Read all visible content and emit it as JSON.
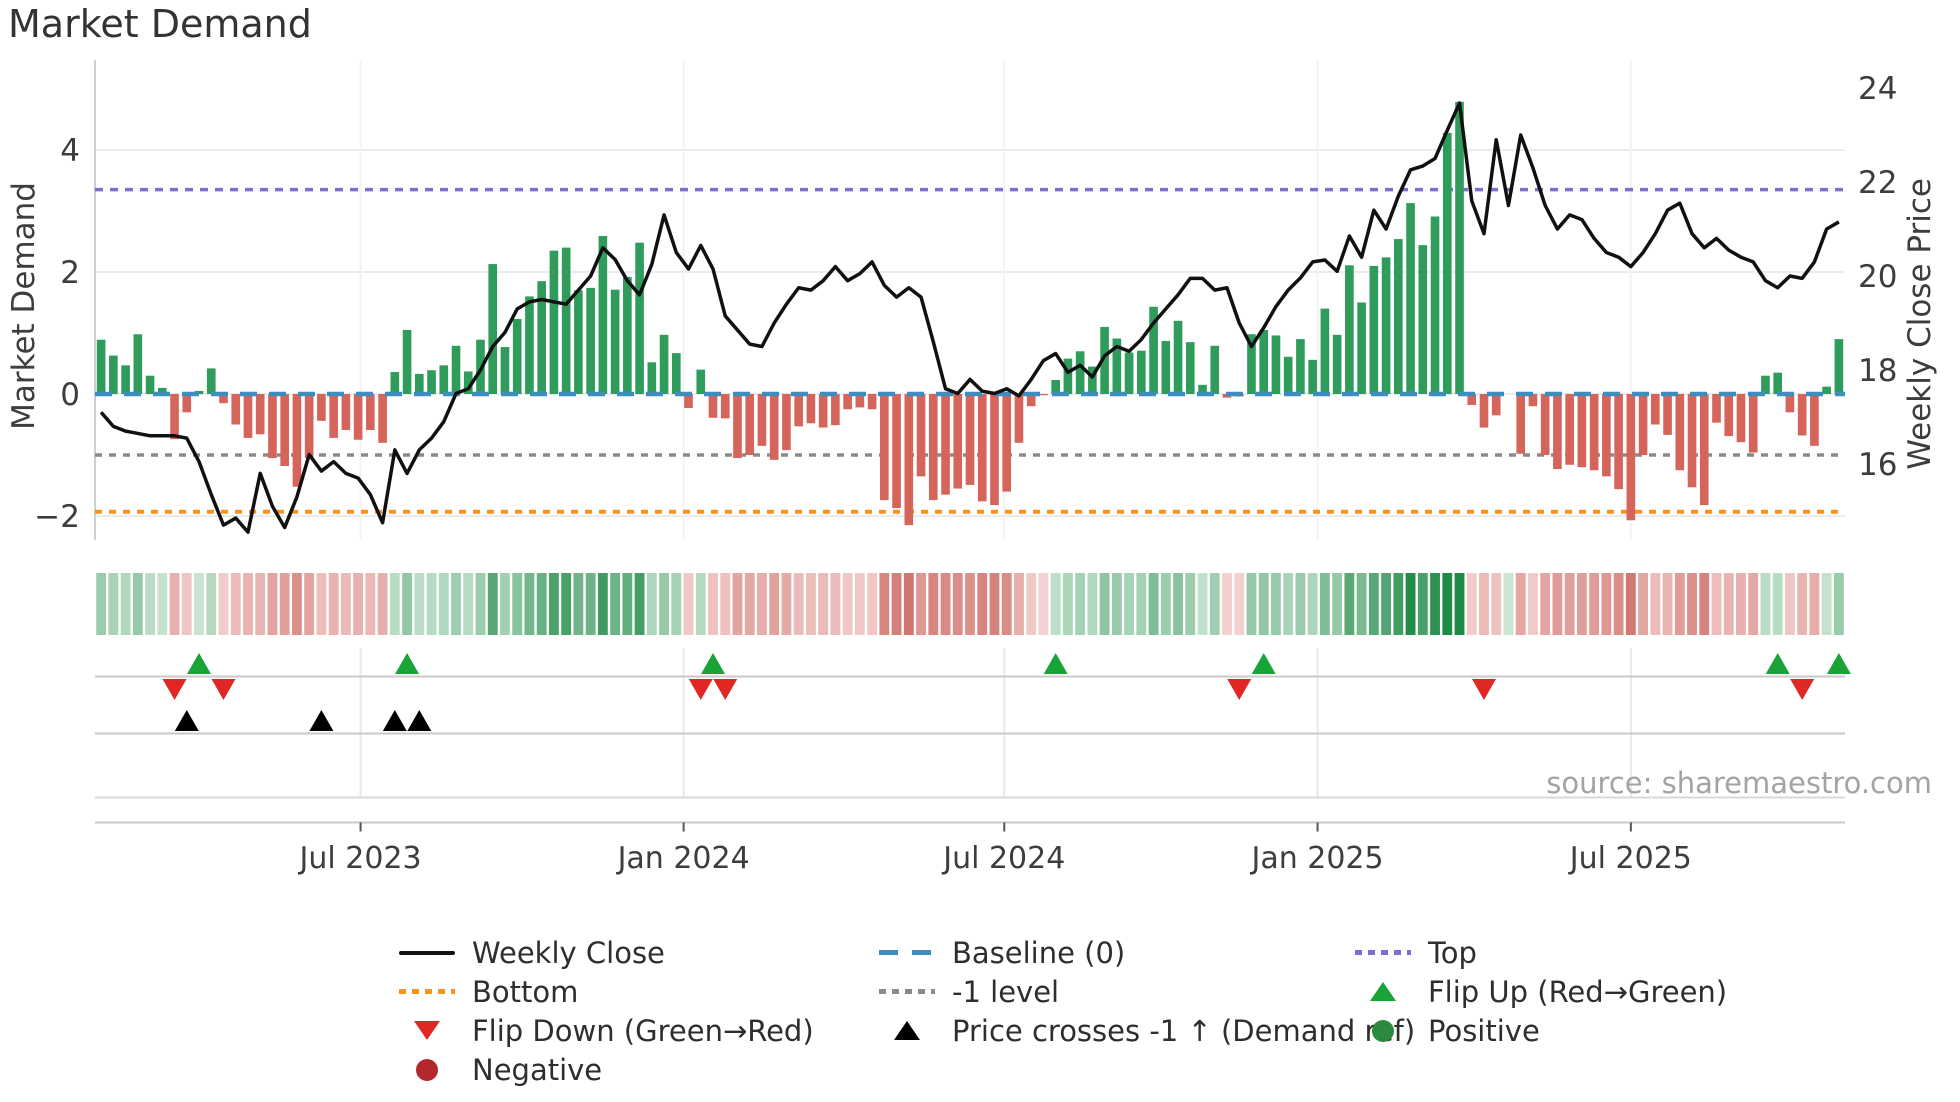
{
  "title": "Market Demand",
  "source": "source: sharemaestro.com",
  "axes": {
    "y_left_title": "Market Demand",
    "y_right_title": "Weekly Close Price",
    "y_left_ticks": [
      "4",
      "2",
      "0",
      "−2"
    ],
    "y_left_tick_values": [
      4,
      2,
      0,
      -2
    ],
    "y_right_ticks": [
      "24",
      "22",
      "20",
      "18",
      "16"
    ],
    "y_right_tick_values": [
      24,
      22,
      20,
      18,
      16
    ],
    "x_tick_labels": [
      "Jul 2023",
      "Jan 2024",
      "Jul 2024",
      "Jan 2025",
      "Jul 2025"
    ]
  },
  "colors": {
    "bar_positive": "#2f9c5c",
    "bar_negative": "#d5655b",
    "price_line": "#111111",
    "baseline": "#3c8ebf",
    "top_line": "#7b6fd0",
    "minus_one_line": "#8a8a8a",
    "bottom_line": "#f5941f",
    "flip_up": "#1aa337",
    "flip_down": "#e02723",
    "price_cross": "#000000",
    "heat_green_dark": "#1e8a45",
    "heat_green_light": "#e9f5ec",
    "heat_red_dark": "#c2453c",
    "heat_red_light": "#fbeceb",
    "grid": "#ebebf1",
    "panel_line": "#c9c9c9",
    "tick_text": "#3d3d3d"
  },
  "legend": {
    "columns": [
      [
        {
          "marker": "solid-black",
          "label": "Weekly Close"
        },
        {
          "marker": "dotted-orange",
          "label": "Bottom"
        },
        {
          "marker": "tri-down-red",
          "label": "Flip Down (Green→Red)"
        },
        {
          "marker": "circle-darkred",
          "label": "Negative"
        }
      ],
      [
        {
          "marker": "dash-blue",
          "label": "Baseline (0)"
        },
        {
          "marker": "dotted-gray",
          "label": "-1 level"
        },
        {
          "marker": "tri-up-black",
          "label": "Price crosses -1 ↑ (Demand ref)"
        }
      ],
      [
        {
          "marker": "dotted-purple",
          "label": "Top"
        },
        {
          "marker": "tri-up-green",
          "label": "Flip Up (Red→Green)"
        },
        {
          "marker": "circle-green",
          "label": "Positive"
        }
      ]
    ]
  },
  "chart_data": {
    "type": "bar+line+heatmap+markers",
    "frequency": "weekly",
    "x_range_note": "weekly data, Feb 2023 to Oct 2025",
    "x_tick_weeks": [
      21.2,
      47.6,
      73.8,
      99.4,
      125.0
    ],
    "demand_axis_range": [
      -2.4,
      5.5
    ],
    "price_axis_range": [
      14.4,
      24.6
    ],
    "levels": {
      "baseline": 0,
      "top": 3.35,
      "minus_one": -1,
      "bottom": -1.93
    },
    "demand": [
      0.89,
      0.63,
      0.47,
      0.98,
      0.3,
      0.1,
      -0.74,
      -0.3,
      0.05,
      0.42,
      -0.15,
      -0.5,
      -0.72,
      -0.66,
      -1.05,
      -1.18,
      -1.52,
      -1.05,
      -0.44,
      -0.72,
      -0.59,
      -0.75,
      -0.59,
      -0.8,
      0.36,
      1.05,
      0.33,
      0.39,
      0.47,
      0.79,
      0.37,
      0.89,
      2.13,
      0.77,
      1.23,
      1.6,
      1.85,
      2.35,
      2.4,
      1.7,
      1.74,
      2.59,
      1.71,
      1.92,
      2.48,
      0.52,
      0.97,
      0.67,
      -0.23,
      0.4,
      -0.39,
      -0.4,
      -1.05,
      -1.0,
      -0.85,
      -1.08,
      -0.92,
      -0.53,
      -0.48,
      -0.55,
      -0.51,
      -0.25,
      -0.22,
      -0.25,
      -1.74,
      -1.87,
      -2.15,
      -1.35,
      -1.74,
      -1.65,
      -1.55,
      -1.49,
      -1.76,
      -1.82,
      -1.6,
      -0.8,
      -0.2,
      -0.02,
      0.23,
      0.58,
      0.7,
      0.45,
      1.1,
      0.91,
      0.68,
      0.71,
      1.43,
      0.87,
      1.2,
      0.85,
      0.15,
      0.79,
      -0.06,
      -0.04,
      0.98,
      1.05,
      0.96,
      0.61,
      0.9,
      0.56,
      1.4,
      0.97,
      2.11,
      1.5,
      2.1,
      2.24,
      2.54,
      3.13,
      2.44,
      2.91,
      4.28,
      4.79,
      -0.18,
      -0.55,
      -0.35,
      0.0,
      -0.98,
      -0.2,
      -1.0,
      -1.23,
      -1.16,
      -1.2,
      -1.25,
      -1.35,
      -1.56,
      -2.07,
      -1.0,
      -0.5,
      -0.67,
      -1.25,
      -1.53,
      -1.82,
      -0.47,
      -0.69,
      -0.79,
      -0.96,
      0.3,
      0.35,
      -0.3,
      -0.68,
      -0.85,
      0.12,
      0.9
    ],
    "price": [
      17.1,
      16.8,
      16.7,
      16.65,
      16.6,
      16.6,
      16.6,
      16.55,
      16.05,
      15.35,
      14.7,
      14.85,
      14.55,
      15.8,
      15.1,
      14.65,
      15.3,
      16.2,
      15.85,
      16.05,
      15.8,
      15.7,
      15.35,
      14.75,
      16.3,
      15.8,
      16.3,
      16.55,
      16.9,
      17.5,
      17.6,
      18.0,
      18.5,
      18.8,
      19.3,
      19.45,
      19.5,
      19.45,
      19.4,
      19.7,
      20.0,
      20.6,
      20.35,
      19.9,
      19.6,
      20.25,
      21.3,
      20.5,
      20.15,
      20.65,
      20.15,
      19.15,
      18.85,
      18.55,
      18.5,
      19.0,
      19.4,
      19.75,
      19.7,
      19.9,
      20.2,
      19.9,
      20.05,
      20.3,
      19.8,
      19.55,
      19.75,
      19.55,
      18.6,
      17.6,
      17.5,
      17.8,
      17.55,
      17.5,
      17.6,
      17.45,
      17.8,
      18.2,
      18.35,
      17.95,
      18.1,
      17.85,
      18.3,
      18.5,
      18.4,
      18.65,
      19.0,
      19.3,
      19.6,
      19.95,
      19.95,
      19.7,
      19.75,
      19.0,
      18.5,
      18.9,
      19.35,
      19.7,
      19.96,
      20.3,
      20.34,
      20.1,
      20.85,
      20.4,
      21.4,
      21.0,
      21.7,
      22.26,
      22.34,
      22.5,
      23.1,
      23.68,
      21.6,
      20.9,
      22.9,
      21.5,
      23.0,
      22.3,
      21.5,
      21.0,
      21.3,
      21.2,
      20.8,
      20.5,
      20.4,
      20.2,
      20.5,
      20.9,
      21.4,
      21.55,
      20.9,
      20.6,
      20.8,
      20.55,
      20.4,
      20.3,
      19.9,
      19.75,
      20.0,
      19.95,
      20.3,
      21.0,
      21.15
    ],
    "flip_up_weeks": [
      8,
      25,
      50,
      78,
      95,
      137,
      142
    ],
    "flip_down_weeks": [
      6,
      10,
      49,
      51,
      93,
      113,
      139
    ],
    "price_cross_weeks": [
      7,
      18,
      24,
      26
    ]
  }
}
